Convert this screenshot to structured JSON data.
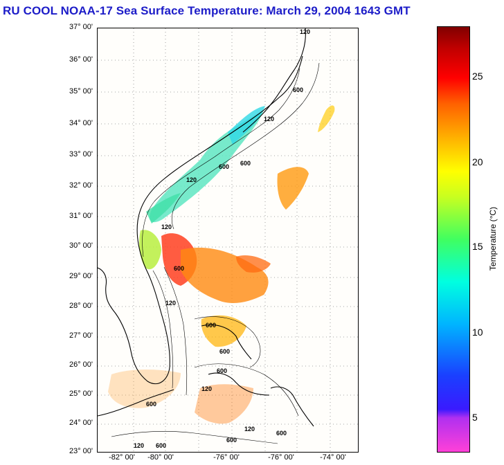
{
  "header": {
    "title": "RU COOL  NOAA-17  Sea Surface Temperature:  March 29, 2004 1643 GMT"
  },
  "map": {
    "lat_labels": [
      "37° 00'",
      "36° 00'",
      "35° 00'",
      "34° 00'",
      "33° 00'",
      "32° 00'",
      "31° 00'",
      "30° 00'",
      "29° 00'",
      "28° 00'",
      "27° 00'",
      "26° 00'",
      "25° 00'",
      "24° 00'",
      "23° 00'"
    ],
    "lon_labels": [
      "-82° 00'",
      "-80° 00'",
      "-76° 00'",
      "-76° 00'",
      "-74° 00'"
    ],
    "isobath_labels": [
      "120",
      "600",
      "120",
      "600",
      "120",
      "600",
      "120",
      "600",
      "120",
      "600",
      "600",
      "600",
      "600",
      "120",
      "600",
      "120",
      "120",
      "600",
      "600"
    ]
  },
  "colorbar": {
    "label": "Temperature (°C)",
    "ticks": [
      "25",
      "20",
      "15",
      "10",
      "5"
    ],
    "colors": [
      "#ff40d8",
      "#8020f0",
      "#1a1aff",
      "#00b4ff",
      "#00ffe0",
      "#40ff60",
      "#c8ff20",
      "#ffff00",
      "#ffb000",
      "#ff6000",
      "#ff0000",
      "#c00000",
      "#800000"
    ]
  }
}
